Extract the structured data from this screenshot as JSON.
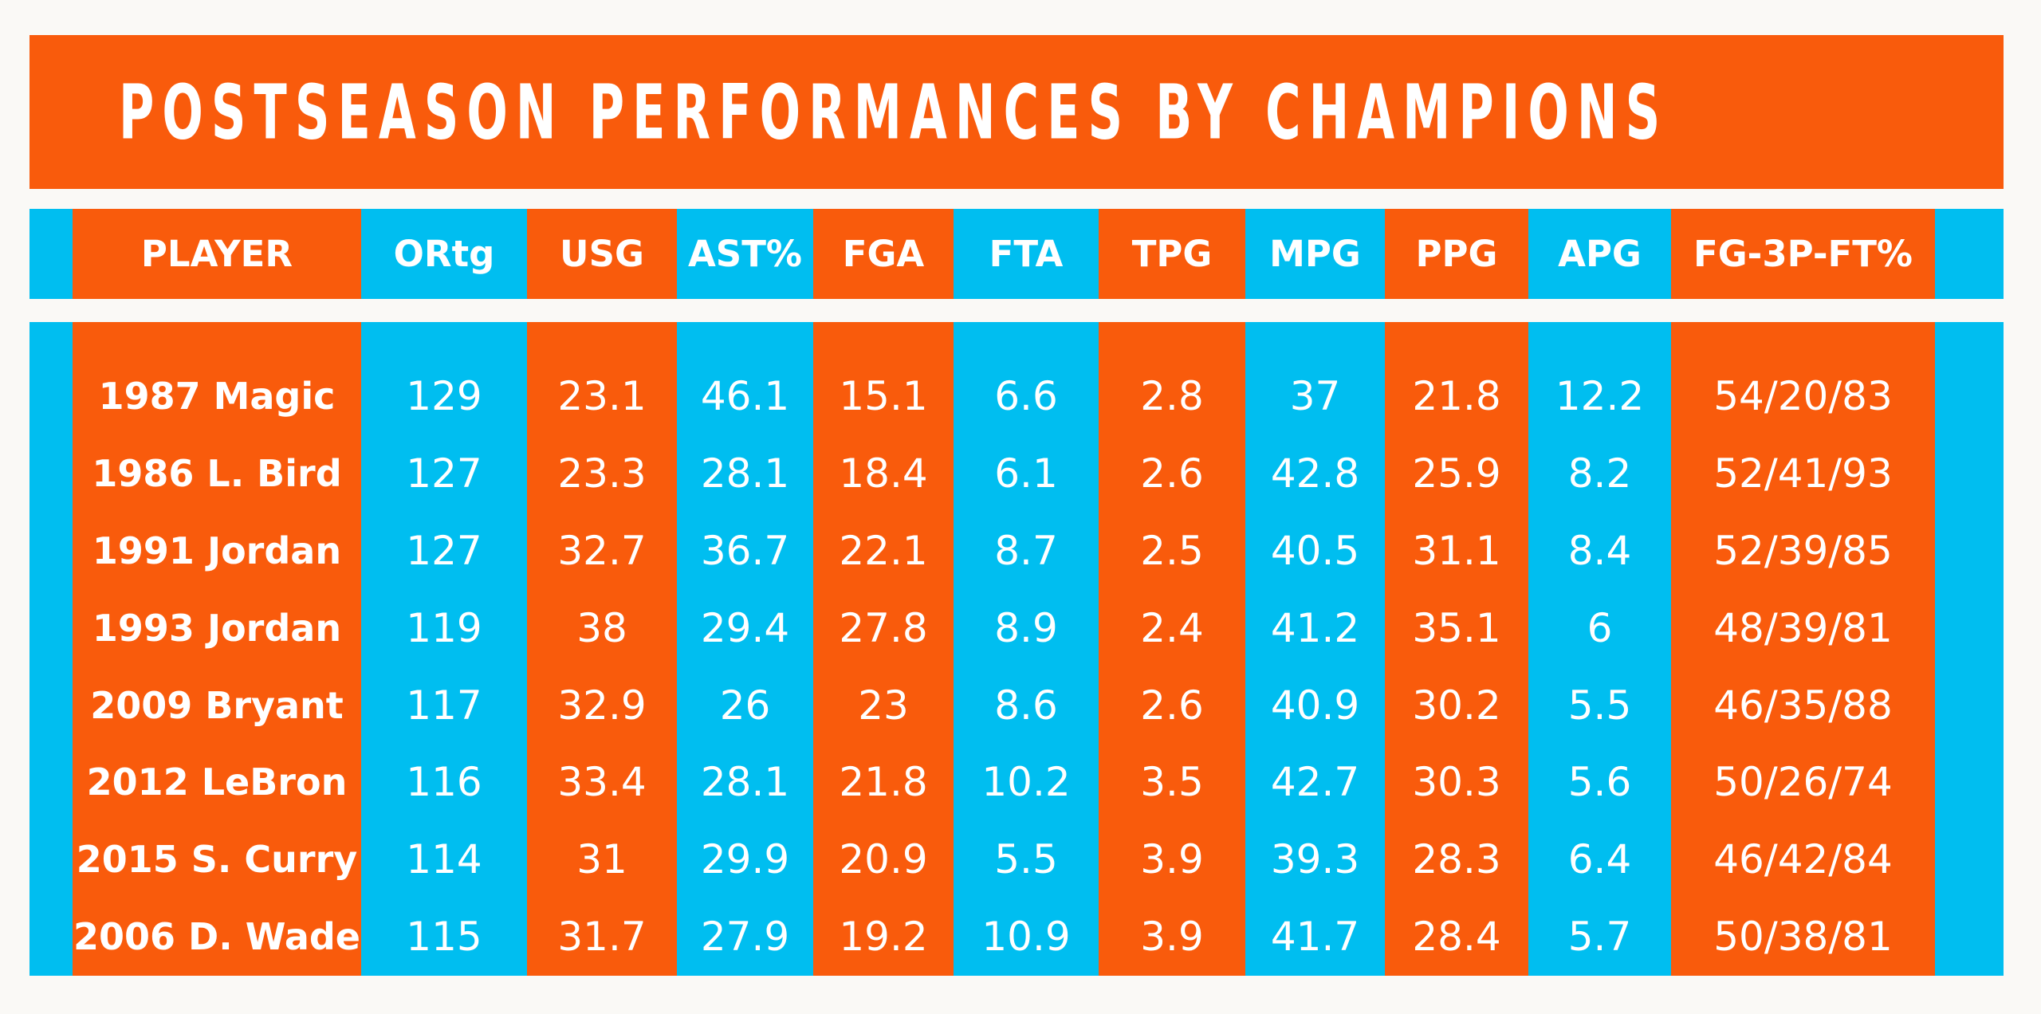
{
  "page": {
    "background": "#FAF9F6"
  },
  "colors": {
    "orange": "#F95B0C",
    "cyan": "#00BEF0",
    "text_light": "#FFFFFF"
  },
  "title": "POSTSEASON PERFORMANCES BY CHAMPIONS",
  "chart_data": {
    "type": "table",
    "title": "POSTSEASON PERFORMANCES BY CHAMPIONS",
    "columns": [
      "PLAYER",
      "ORtg",
      "USG",
      "AST%",
      "FGA",
      "FTA",
      "TPG",
      "MPG",
      "PPG",
      "APG",
      "FG-3P-FT%"
    ],
    "rows": [
      [
        "1987 Magic",
        129,
        23.1,
        46.1,
        15.1,
        6.6,
        2.8,
        37,
        21.8,
        12.2,
        "54/20/83"
      ],
      [
        "1986 L. Bird",
        127,
        23.3,
        28.1,
        18.4,
        6.1,
        2.6,
        42.8,
        25.9,
        8.2,
        "52/41/93"
      ],
      [
        "1991 Jordan",
        127,
        32.7,
        36.7,
        22.1,
        8.7,
        2.5,
        40.5,
        31.1,
        8.4,
        "52/39/85"
      ],
      [
        "1993 Jordan",
        119,
        38,
        29.4,
        27.8,
        8.9,
        2.4,
        41.2,
        35.1,
        6,
        "48/39/81"
      ],
      [
        "2009 Bryant",
        117,
        32.9,
        26,
        23,
        8.6,
        2.6,
        40.9,
        30.2,
        5.5,
        "46/35/88"
      ],
      [
        "2012 LeBron",
        116,
        33.4,
        28.1,
        21.8,
        10.2,
        3.5,
        42.7,
        30.3,
        5.6,
        "50/26/74"
      ],
      [
        "2015 S. Curry",
        114,
        31,
        29.9,
        20.9,
        5.5,
        3.9,
        39.3,
        28.3,
        6.4,
        "46/42/84"
      ],
      [
        "2006 D. Wade",
        115,
        31.7,
        27.9,
        19.2,
        10.9,
        3.9,
        41.7,
        28.4,
        5.7,
        "50/38/81"
      ]
    ],
    "layout": {
      "legend": "none",
      "grid": "off",
      "edge_stripe_color": "cyan",
      "column_stripe_colors": [
        "orange",
        "cyan",
        "orange",
        "cyan",
        "orange",
        "cyan",
        "orange",
        "cyan",
        "orange",
        "cyan",
        "orange"
      ]
    }
  }
}
